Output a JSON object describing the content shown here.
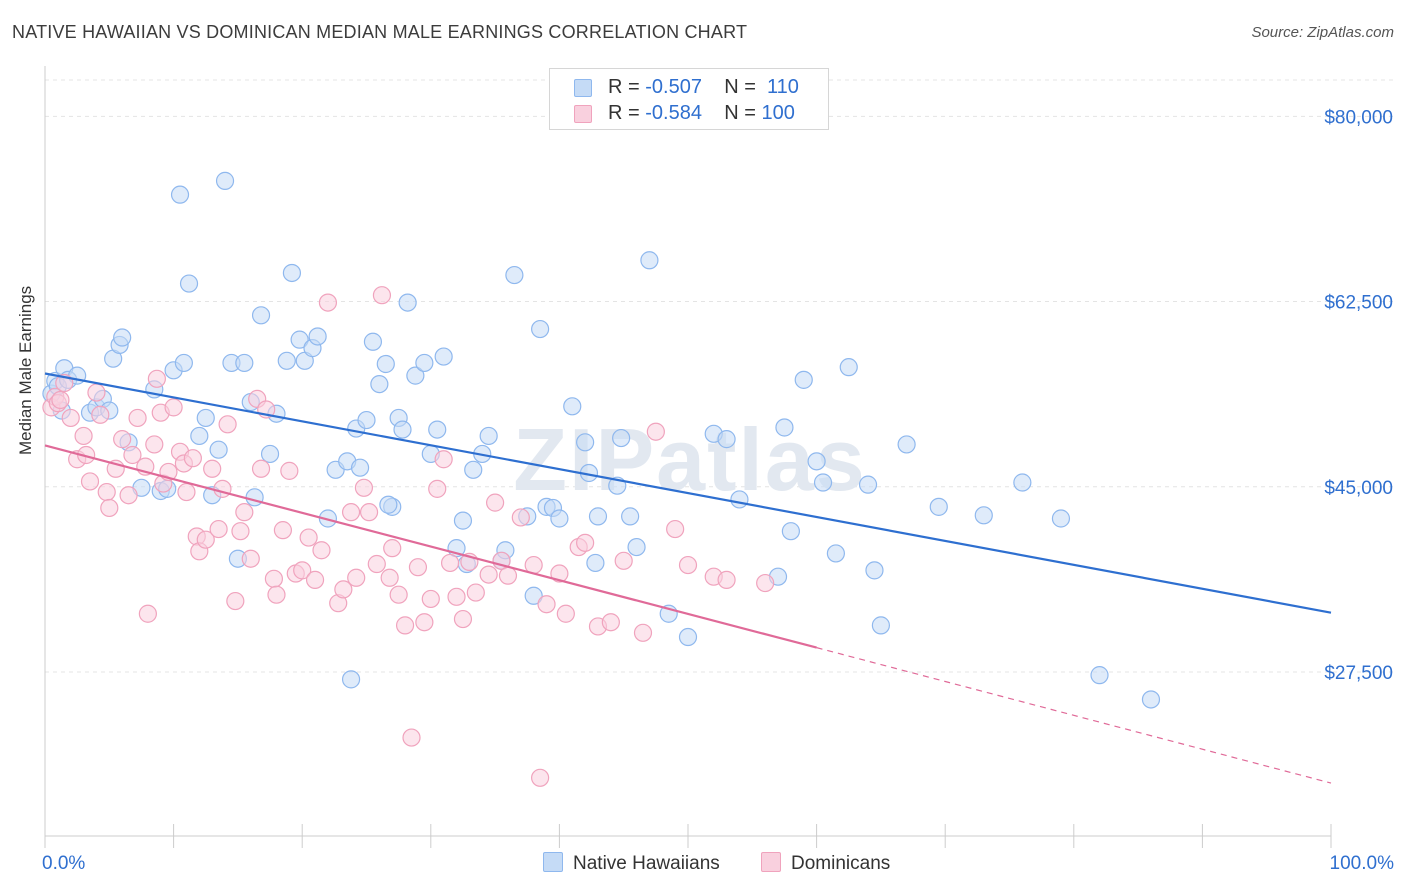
{
  "title": "NATIVE HAWAIIAN VS DOMINICAN MEDIAN MALE EARNINGS CORRELATION CHART",
  "source": "Source: ZipAtlas.com",
  "watermark": "ZIPatlas",
  "legend": {
    "rows": [
      {
        "r_label": "R =",
        "r_value": "-0.507",
        "n_label": "N =",
        "n_value": "110",
        "color": "#8fb8ee",
        "fill": "#c5dbf6"
      },
      {
        "r_label": "R =",
        "r_value": "-0.584",
        "n_label": "N =",
        "n_value": "100",
        "color": "#f0a3bd",
        "fill": "#f9d0de"
      }
    ]
  },
  "bottom_legend": [
    {
      "label": "Native Hawaiians"
    },
    {
      "label": "Dominicans"
    }
  ],
  "chart_data": {
    "type": "scatter",
    "title": "NATIVE HAWAIIAN VS DOMINICAN MEDIAN MALE EARNINGS CORRELATION CHART",
    "xlabel": "",
    "ylabel": "Median Male Earnings",
    "xlim": [
      0,
      100
    ],
    "ylim": [
      12000,
      84000
    ],
    "x_tick_labels": [
      "0.0%",
      "100.0%"
    ],
    "y_ticks": [
      27500,
      45000,
      62500,
      80000
    ],
    "y_tick_labels": [
      "$27,500",
      "$45,000",
      "$62,500",
      "$80,000"
    ],
    "grid": true,
    "legend_position": "top-center",
    "series": [
      {
        "name": "Native Hawaiians",
        "color": "#6fa3e6",
        "line_color": "#2e6fd0",
        "trend": {
          "x": [
            0,
            100
          ],
          "y": [
            55700,
            33100
          ]
        },
        "points": [
          [
            0.5,
            53800
          ],
          [
            0.8,
            55000
          ],
          [
            1.0,
            54500
          ],
          [
            1.3,
            52200
          ],
          [
            1.5,
            56200
          ],
          [
            1.8,
            55100
          ],
          [
            2.5,
            55500
          ],
          [
            3.5,
            52000
          ],
          [
            4.0,
            52500
          ],
          [
            4.5,
            53300
          ],
          [
            5.0,
            52200
          ],
          [
            5.3,
            57100
          ],
          [
            5.8,
            58400
          ],
          [
            6.0,
            59100
          ],
          [
            6.5,
            49200
          ],
          [
            7.5,
            44900
          ],
          [
            8.5,
            54200
          ],
          [
            9.0,
            44600
          ],
          [
            9.5,
            44800
          ],
          [
            10.0,
            56000
          ],
          [
            10.5,
            72600
          ],
          [
            10.8,
            56700
          ],
          [
            11.2,
            64200
          ],
          [
            12.0,
            49800
          ],
          [
            12.5,
            51500
          ],
          [
            13.0,
            44200
          ],
          [
            13.5,
            48500
          ],
          [
            14.0,
            73900
          ],
          [
            14.5,
            56700
          ],
          [
            15.0,
            38200
          ],
          [
            15.5,
            56700
          ],
          [
            16.0,
            53000
          ],
          [
            16.3,
            44000
          ],
          [
            16.8,
            61200
          ],
          [
            17.5,
            48100
          ],
          [
            18.0,
            51900
          ],
          [
            18.8,
            56900
          ],
          [
            19.2,
            65200
          ],
          [
            19.8,
            58900
          ],
          [
            20.2,
            56900
          ],
          [
            20.8,
            58100
          ],
          [
            21.2,
            59200
          ],
          [
            22.0,
            42000
          ],
          [
            22.6,
            46600
          ],
          [
            23.5,
            47400
          ],
          [
            23.8,
            26800
          ],
          [
            24.2,
            50500
          ],
          [
            24.5,
            46800
          ],
          [
            25.0,
            51300
          ],
          [
            25.5,
            58700
          ],
          [
            26.0,
            54700
          ],
          [
            26.5,
            56600
          ],
          [
            27.0,
            43100
          ],
          [
            27.5,
            51500
          ],
          [
            27.8,
            50400
          ],
          [
            28.2,
            62400
          ],
          [
            28.8,
            55500
          ],
          [
            29.5,
            56700
          ],
          [
            30.0,
            48100
          ],
          [
            30.5,
            50400
          ],
          [
            31.0,
            57300
          ],
          [
            32.0,
            39200
          ],
          [
            32.5,
            41800
          ],
          [
            32.8,
            37700
          ],
          [
            33.3,
            46600
          ],
          [
            34.0,
            48100
          ],
          [
            34.5,
            49800
          ],
          [
            35.5,
            38000
          ],
          [
            35.8,
            39000
          ],
          [
            36.5,
            65000
          ],
          [
            37.5,
            42200
          ],
          [
            38.0,
            34700
          ],
          [
            38.5,
            59900
          ],
          [
            39.0,
            43100
          ],
          [
            39.5,
            43000
          ],
          [
            40.0,
            42000
          ],
          [
            41.0,
            52600
          ],
          [
            42.0,
            49200
          ],
          [
            42.3,
            46300
          ],
          [
            42.8,
            37800
          ],
          [
            43.0,
            42200
          ],
          [
            44.5,
            45100
          ],
          [
            44.8,
            49600
          ],
          [
            46.0,
            39300
          ],
          [
            47.0,
            66400
          ],
          [
            48.5,
            33000
          ],
          [
            50.0,
            30800
          ],
          [
            52.0,
            50000
          ],
          [
            53.0,
            49500
          ],
          [
            54.0,
            43800
          ],
          [
            57.0,
            36500
          ],
          [
            57.5,
            50600
          ],
          [
            59.0,
            55100
          ],
          [
            60.0,
            47400
          ],
          [
            60.5,
            45400
          ],
          [
            61.5,
            38700
          ],
          [
            62.5,
            56300
          ],
          [
            64.0,
            45200
          ],
          [
            64.5,
            37100
          ],
          [
            65.0,
            31900
          ],
          [
            67.0,
            49000
          ],
          [
            69.5,
            43100
          ],
          [
            73.0,
            42300
          ],
          [
            76.0,
            45400
          ],
          [
            79.0,
            42000
          ],
          [
            82.0,
            27200
          ],
          [
            86.0,
            24900
          ],
          [
            45.5,
            42200
          ],
          [
            58.0,
            40800
          ],
          [
            26.7,
            43300
          ]
        ]
      },
      {
        "name": "Dominicans",
        "color": "#ee8fb0",
        "line_color": "#e06a98",
        "trend": {
          "x": [
            0,
            60
          ],
          "y": [
            48900,
            29800
          ]
        },
        "trend_dashed": {
          "x": [
            60,
            100
          ],
          "y": [
            29800,
            17000
          ]
        },
        "points": [
          [
            0.5,
            52500
          ],
          [
            0.8,
            53500
          ],
          [
            1.0,
            52900
          ],
          [
            1.2,
            53200
          ],
          [
            1.5,
            54800
          ],
          [
            2.0,
            51500
          ],
          [
            2.5,
            47600
          ],
          [
            3.0,
            49800
          ],
          [
            3.2,
            48000
          ],
          [
            3.5,
            45500
          ],
          [
            4.0,
            53900
          ],
          [
            4.3,
            51800
          ],
          [
            4.8,
            44500
          ],
          [
            5.0,
            43000
          ],
          [
            5.5,
            46700
          ],
          [
            6.0,
            49500
          ],
          [
            6.5,
            44200
          ],
          [
            6.8,
            48000
          ],
          [
            7.2,
            51500
          ],
          [
            7.8,
            46900
          ],
          [
            8.0,
            33000
          ],
          [
            8.5,
            49000
          ],
          [
            8.7,
            55200
          ],
          [
            9.0,
            52000
          ],
          [
            9.2,
            45300
          ],
          [
            9.6,
            46400
          ],
          [
            10.0,
            52500
          ],
          [
            10.5,
            48300
          ],
          [
            10.8,
            47200
          ],
          [
            11.0,
            44500
          ],
          [
            11.5,
            47700
          ],
          [
            11.8,
            40300
          ],
          [
            12.0,
            38900
          ],
          [
            12.5,
            40000
          ],
          [
            13.0,
            46700
          ],
          [
            13.5,
            41000
          ],
          [
            13.8,
            44800
          ],
          [
            14.2,
            50900
          ],
          [
            14.8,
            34200
          ],
          [
            15.2,
            40800
          ],
          [
            15.5,
            42600
          ],
          [
            16.0,
            38200
          ],
          [
            16.5,
            53300
          ],
          [
            16.8,
            46700
          ],
          [
            17.2,
            52300
          ],
          [
            17.8,
            36300
          ],
          [
            18.0,
            34800
          ],
          [
            18.5,
            40900
          ],
          [
            19.0,
            46500
          ],
          [
            19.5,
            36800
          ],
          [
            20.0,
            37100
          ],
          [
            20.5,
            40200
          ],
          [
            21.0,
            36200
          ],
          [
            21.5,
            39000
          ],
          [
            22.0,
            62400
          ],
          [
            22.8,
            34000
          ],
          [
            23.2,
            35300
          ],
          [
            23.8,
            42600
          ],
          [
            24.2,
            36400
          ],
          [
            24.8,
            44900
          ],
          [
            25.2,
            42600
          ],
          [
            25.8,
            37700
          ],
          [
            26.2,
            63100
          ],
          [
            26.8,
            36400
          ],
          [
            27.5,
            34800
          ],
          [
            28.0,
            31900
          ],
          [
            28.5,
            21300
          ],
          [
            29.0,
            37400
          ],
          [
            29.5,
            32200
          ],
          [
            30.0,
            34400
          ],
          [
            30.5,
            44800
          ],
          [
            31.0,
            47600
          ],
          [
            31.5,
            37800
          ],
          [
            32.0,
            34600
          ],
          [
            32.5,
            32500
          ],
          [
            33.0,
            37900
          ],
          [
            33.5,
            35000
          ],
          [
            34.5,
            36700
          ],
          [
            35.0,
            43500
          ],
          [
            35.5,
            38000
          ],
          [
            36.0,
            36600
          ],
          [
            37.0,
            42100
          ],
          [
            38.0,
            37600
          ],
          [
            38.5,
            17500
          ],
          [
            39.0,
            33900
          ],
          [
            40.0,
            36800
          ],
          [
            40.5,
            33000
          ],
          [
            41.5,
            39300
          ],
          [
            42.0,
            39700
          ],
          [
            43.0,
            31800
          ],
          [
            44.0,
            32200
          ],
          [
            45.0,
            38000
          ],
          [
            46.5,
            31200
          ],
          [
            47.5,
            50200
          ],
          [
            49.0,
            41000
          ],
          [
            50.0,
            37600
          ],
          [
            52.0,
            36500
          ],
          [
            53.0,
            36200
          ],
          [
            56.0,
            35900
          ],
          [
            27.0,
            39200
          ]
        ]
      }
    ]
  }
}
